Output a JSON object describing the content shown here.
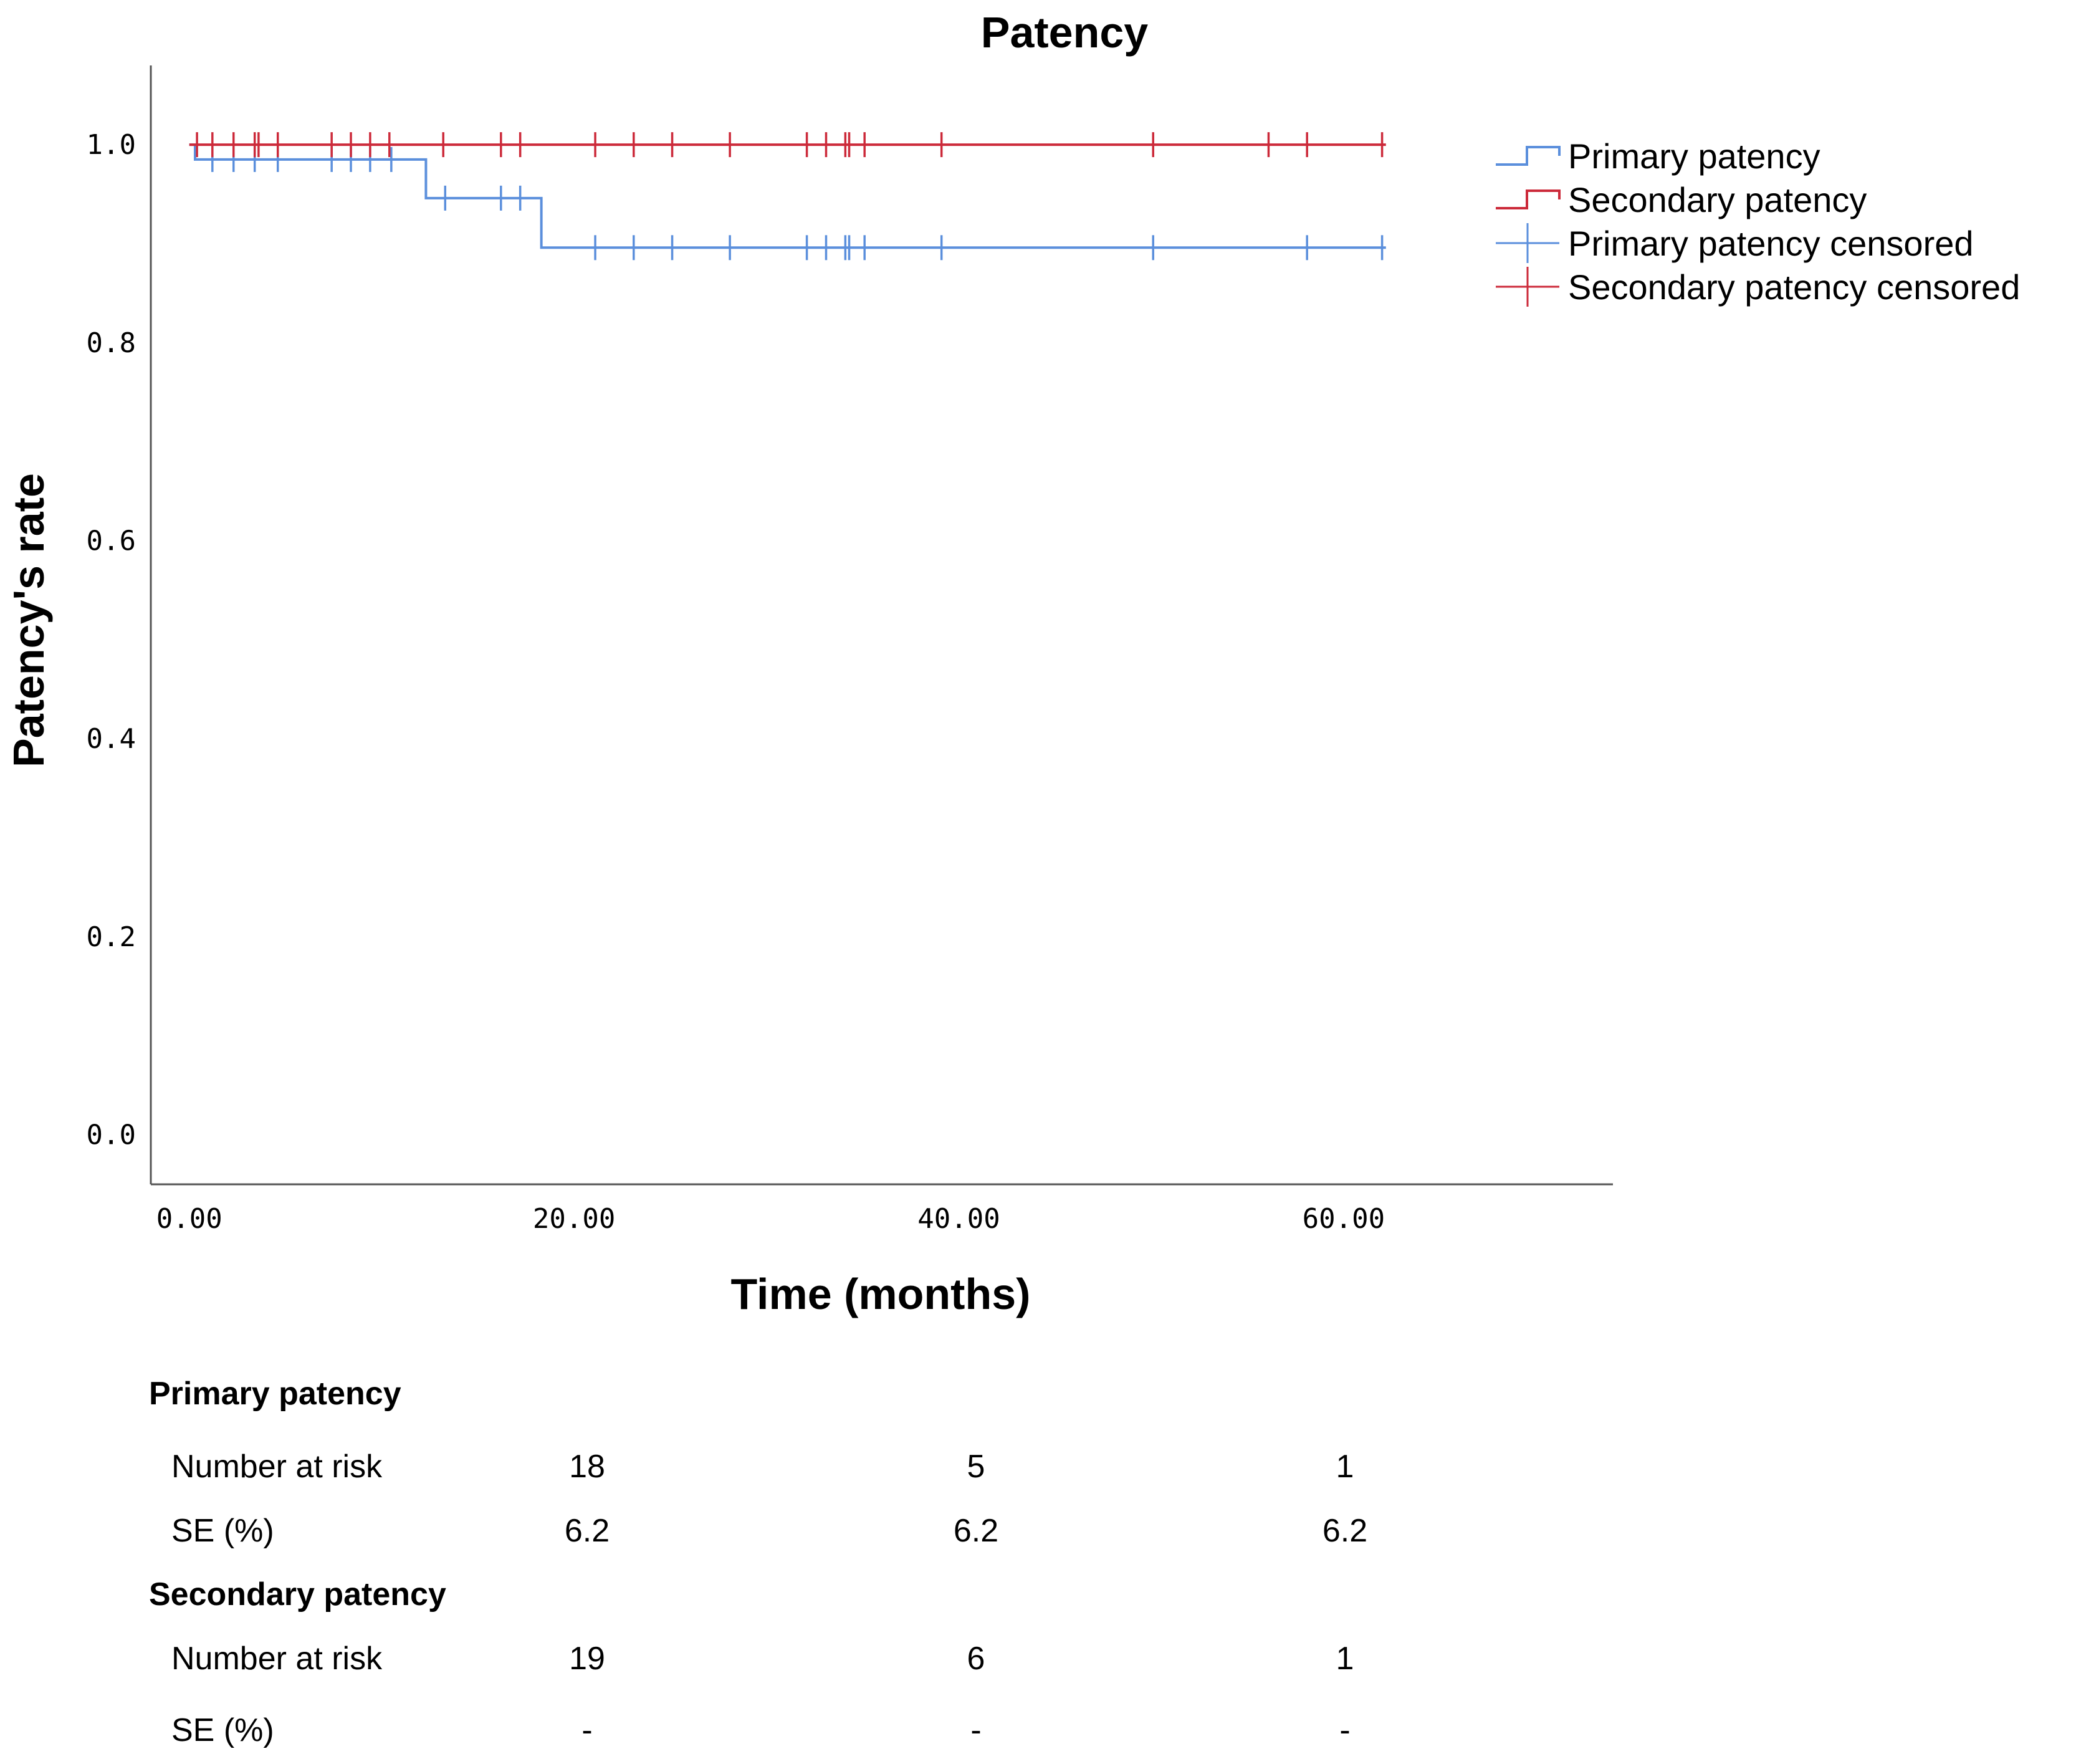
{
  "chart_data": {
    "type": "line",
    "subtype": "kaplan-meier",
    "title": "Patency",
    "xlabel": "Time (months)",
    "ylabel": "Patency's rate",
    "xlim": [
      -2,
      74
    ],
    "ylim": [
      -0.05,
      1.08
    ],
    "xticks": [
      0,
      20,
      40,
      60
    ],
    "xtick_labels": [
      "0.00",
      "20.00",
      "40.00",
      "60.00"
    ],
    "yticks": [
      0.0,
      0.2,
      0.4,
      0.6,
      0.8,
      1.0
    ],
    "ytick_labels": [
      "0.0",
      "0.2",
      "0.4",
      "0.6",
      "0.8",
      "1.0"
    ],
    "grid": false,
    "legend_position": "top-right outside",
    "series": [
      {
        "name": "Primary patency",
        "color": "#5b8fdc",
        "steps": [
          [
            0,
            1.0
          ],
          [
            0.3,
            0.985
          ],
          [
            12.3,
            0.985
          ],
          [
            12.3,
            0.946
          ],
          [
            18.3,
            0.946
          ],
          [
            18.3,
            0.896
          ],
          [
            62.2,
            0.896
          ]
        ],
        "censored_times": [
          1.2,
          2.3,
          3.4,
          4.6,
          7.4,
          8.4,
          9.4,
          10.5,
          13.3,
          16.2,
          17.2,
          21.1,
          23.1,
          25.1,
          28.1,
          32.1,
          33.1,
          34.1,
          34.3,
          35.1,
          39.1,
          50.1,
          58.1,
          62.0
        ],
        "censored_values": [
          0.985,
          0.985,
          0.985,
          0.985,
          0.985,
          0.985,
          0.985,
          0.985,
          0.946,
          0.946,
          0.946,
          0.896,
          0.896,
          0.896,
          0.896,
          0.896,
          0.896,
          0.896,
          0.896,
          0.896,
          0.896,
          0.896,
          0.896,
          0.896
        ]
      },
      {
        "name": "Secondary patency",
        "color": "#cc2a3a",
        "steps": [
          [
            0,
            1.0
          ],
          [
            62.2,
            1.0
          ]
        ],
        "censored_times": [
          0.4,
          1.2,
          2.3,
          3.4,
          3.6,
          4.6,
          7.4,
          8.4,
          9.4,
          10.4,
          13.2,
          16.2,
          17.2,
          21.1,
          23.1,
          25.1,
          28.1,
          32.1,
          33.1,
          34.1,
          34.3,
          35.1,
          39.1,
          50.1,
          56.1,
          58.1,
          62.0
        ],
        "censored_values": [
          1.0,
          1.0,
          1.0,
          1.0,
          1.0,
          1.0,
          1.0,
          1.0,
          1.0,
          1.0,
          1.0,
          1.0,
          1.0,
          1.0,
          1.0,
          1.0,
          1.0,
          1.0,
          1.0,
          1.0,
          1.0,
          1.0,
          1.0,
          1.0,
          1.0,
          1.0,
          1.0
        ]
      }
    ],
    "legend": [
      {
        "label": "Primary patency",
        "kind": "step",
        "color": "#5b8fdc"
      },
      {
        "label": "Secondary patency",
        "kind": "step",
        "color": "#cc2a3a"
      },
      {
        "label": "Primary patency censored",
        "kind": "censor",
        "color": "#5b8fdc"
      },
      {
        "label": "Secondary patency censored",
        "kind": "censor",
        "color": "#cc2a3a"
      }
    ]
  },
  "risk_table": {
    "groups": [
      {
        "title": "Primary patency",
        "rows": [
          {
            "label": "Number at risk",
            "values": [
              "18",
              "5",
              "1"
            ]
          },
          {
            "label": "SE (%)",
            "values": [
              "6.2",
              "6.2",
              "6.2"
            ]
          }
        ]
      },
      {
        "title": "Secondary patency",
        "rows": [
          {
            "label": "Number at risk",
            "values": [
              "19",
              "6",
              "1"
            ]
          },
          {
            "label": "SE (%)",
            "values": [
              "-",
              "-",
              "-"
            ]
          }
        ]
      }
    ]
  }
}
